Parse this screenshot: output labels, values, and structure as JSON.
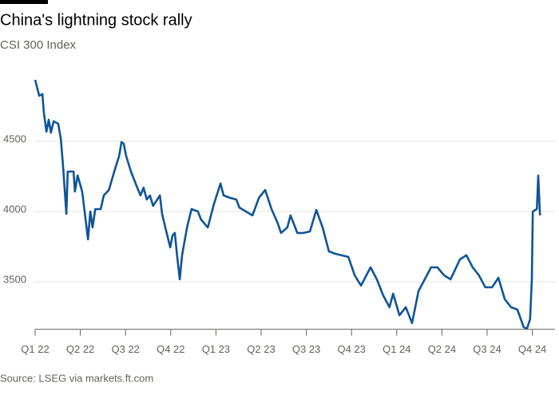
{
  "chart_data": {
    "type": "line",
    "title": "China's lightning stock rally",
    "subtitle": "CSI 300 Index",
    "source": "Source: LSEG via markets.ft.com",
    "xlim": [
      0,
      11.2
    ],
    "xticks": [
      {
        "value": 0,
        "label": "Q1 22"
      },
      {
        "value": 1,
        "label": "Q2 22"
      },
      {
        "value": 2,
        "label": "Q3 22"
      },
      {
        "value": 3,
        "label": "Q4 22"
      },
      {
        "value": 4,
        "label": "Q1 23"
      },
      {
        "value": 5,
        "label": "Q2 23"
      },
      {
        "value": 6,
        "label": "Q3 23"
      },
      {
        "value": 7,
        "label": "Q4 23"
      },
      {
        "value": 8,
        "label": "Q1 24"
      },
      {
        "value": 9,
        "label": "Q2 24"
      },
      {
        "value": 10,
        "label": "Q3 24"
      },
      {
        "value": 11,
        "label": "Q4 24"
      }
    ],
    "ylim": [
      3150,
      4980
    ],
    "yticks": [
      3500,
      4000,
      4500
    ],
    "grid": true,
    "series": [
      {
        "color": "#0f5499",
        "x": [
          0.0,
          0.09,
          0.16,
          0.19,
          0.25,
          0.3,
          0.35,
          0.41,
          0.51,
          0.57,
          0.62,
          0.69,
          0.72,
          0.85,
          0.88,
          0.94,
          1.04,
          1.11,
          1.17,
          1.22,
          1.27,
          1.33,
          1.45,
          1.52,
          1.63,
          1.75,
          1.86,
          1.91,
          1.96,
          2.01,
          2.12,
          2.26,
          2.33,
          2.4,
          2.47,
          2.54,
          2.61,
          2.76,
          2.81,
          2.88,
          2.99,
          3.04,
          3.09,
          3.14,
          3.2,
          3.25,
          3.36,
          3.46,
          3.6,
          3.67,
          3.82,
          3.96,
          4.1,
          4.17,
          4.31,
          4.45,
          4.52,
          4.66,
          4.81,
          4.95,
          5.09,
          5.23,
          5.37,
          5.44,
          5.58,
          5.65,
          5.8,
          5.94,
          6.08,
          6.22,
          6.36,
          6.5,
          6.64,
          6.78,
          6.93,
          7.07,
          7.21,
          7.42,
          7.56,
          7.7,
          7.84,
          7.92,
          8.06,
          8.2,
          8.34,
          8.48,
          8.62,
          8.76,
          8.9,
          9.05,
          9.19,
          9.4,
          9.54,
          9.68,
          9.82,
          9.96,
          10.11,
          10.25,
          10.39,
          10.53,
          10.67,
          10.81,
          10.88,
          10.95,
          10.99,
          11.01,
          11.1,
          11.13,
          11.17
        ],
        "values": [
          4937,
          4824,
          4835,
          4710,
          4568,
          4653,
          4562,
          4642,
          4625,
          4511,
          4312,
          3983,
          4284,
          4284,
          4142,
          4256,
          4142,
          3960,
          3801,
          4000,
          3886,
          4017,
          4017,
          4114,
          4153,
          4284,
          4398,
          4494,
          4483,
          4398,
          4284,
          4170,
          4114,
          4170,
          4085,
          4114,
          4040,
          4114,
          3983,
          3886,
          3744,
          3830,
          3847,
          3688,
          3517,
          3688,
          3886,
          4017,
          4000,
          3943,
          3886,
          4057,
          4199,
          4114,
          4097,
          4085,
          4028,
          4000,
          3972,
          4097,
          4153,
          4017,
          3915,
          3847,
          3886,
          3972,
          3847,
          3847,
          3858,
          4011,
          3886,
          3716,
          3699,
          3688,
          3676,
          3545,
          3472,
          3602,
          3517,
          3403,
          3318,
          3415,
          3261,
          3318,
          3205,
          3432,
          3517,
          3602,
          3602,
          3545,
          3517,
          3659,
          3688,
          3602,
          3545,
          3460,
          3460,
          3528,
          3375,
          3318,
          3301,
          3176,
          3165,
          3233,
          3517,
          4000,
          4017,
          4256,
          3972
        ]
      }
    ]
  }
}
